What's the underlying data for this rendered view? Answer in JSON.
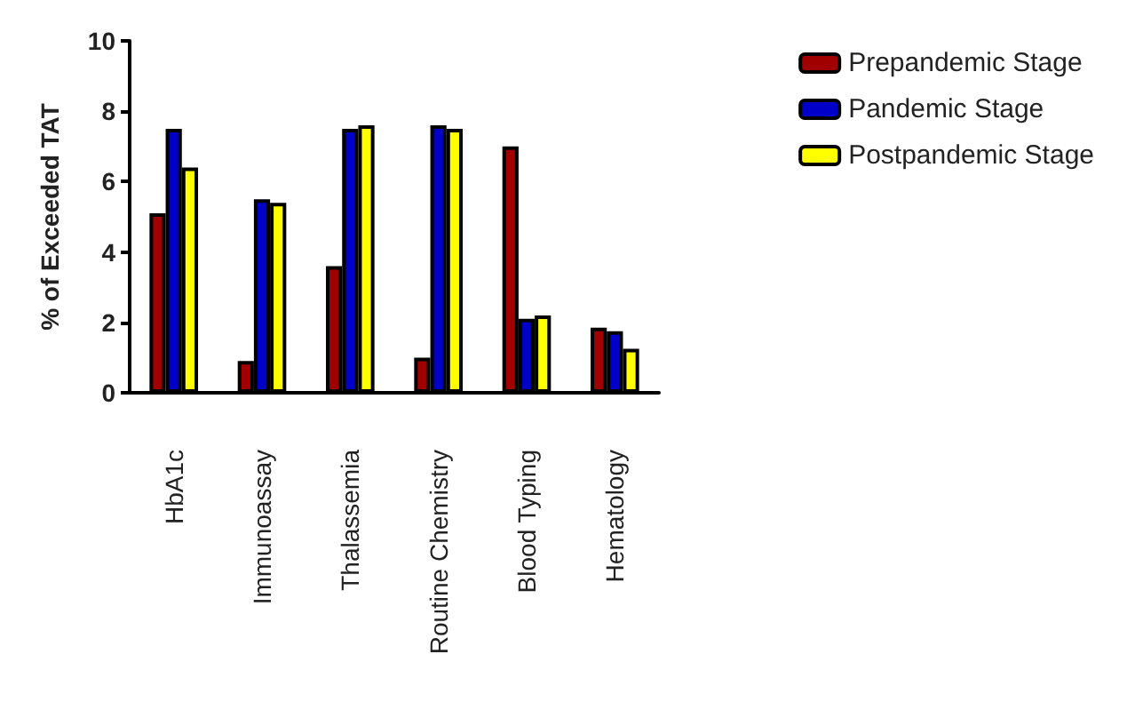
{
  "chart_data": {
    "type": "bar",
    "ylabel": "% of Exceeded TAT",
    "categories": [
      "HbA1c",
      "Immunoassay",
      "Thalassemia",
      "Routine Chemistry",
      "Blood Typing",
      "Hematology"
    ],
    "series": [
      {
        "name": "Prepandemic Stage",
        "color": "#a00000",
        "values": [
          5.1,
          0.9,
          3.6,
          1.0,
          7.0,
          1.85
        ]
      },
      {
        "name": "Pandemic Stage",
        "color": "#0000c8",
        "values": [
          7.5,
          5.5,
          7.5,
          7.6,
          2.1,
          1.75
        ]
      },
      {
        "name": "Postpandemic Stage",
        "color": "#ffff00",
        "values": [
          6.4,
          5.4,
          7.6,
          7.5,
          2.2,
          1.25
        ]
      }
    ],
    "ylim": [
      0,
      10
    ],
    "yticks": [
      0,
      2,
      4,
      6,
      8,
      10
    ],
    "grid": false,
    "legend": "top right"
  }
}
